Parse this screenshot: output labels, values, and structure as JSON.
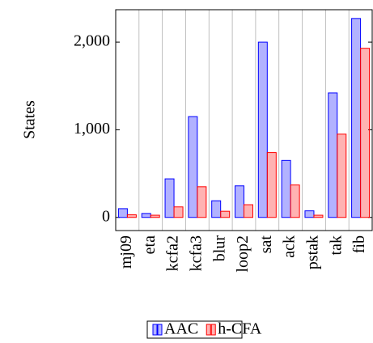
{
  "chart_data": {
    "type": "bar",
    "y_label": "States",
    "categories": [
      "mj09",
      "eta",
      "kcfa2",
      "kcfa3",
      "blur",
      "loop2",
      "sat",
      "ack",
      "pstak",
      "tak",
      "fib"
    ],
    "series": [
      {
        "name": "AAC",
        "color": "#0000ff",
        "values": [
          100,
          45,
          440,
          1150,
          190,
          360,
          2000,
          650,
          75,
          1420,
          2270
        ]
      },
      {
        "name": "h-CFA",
        "color": "#ff0000",
        "values": [
          30,
          25,
          120,
          350,
          70,
          145,
          740,
          370,
          25,
          950,
          1930
        ]
      }
    ],
    "ylim": [
      -150,
      2370
    ],
    "yticks": [
      0,
      {
        "value": 1000,
        "label": "1,000"
      },
      {
        "value": 2000,
        "label": "2,000"
      }
    ],
    "legend": "bottom"
  }
}
